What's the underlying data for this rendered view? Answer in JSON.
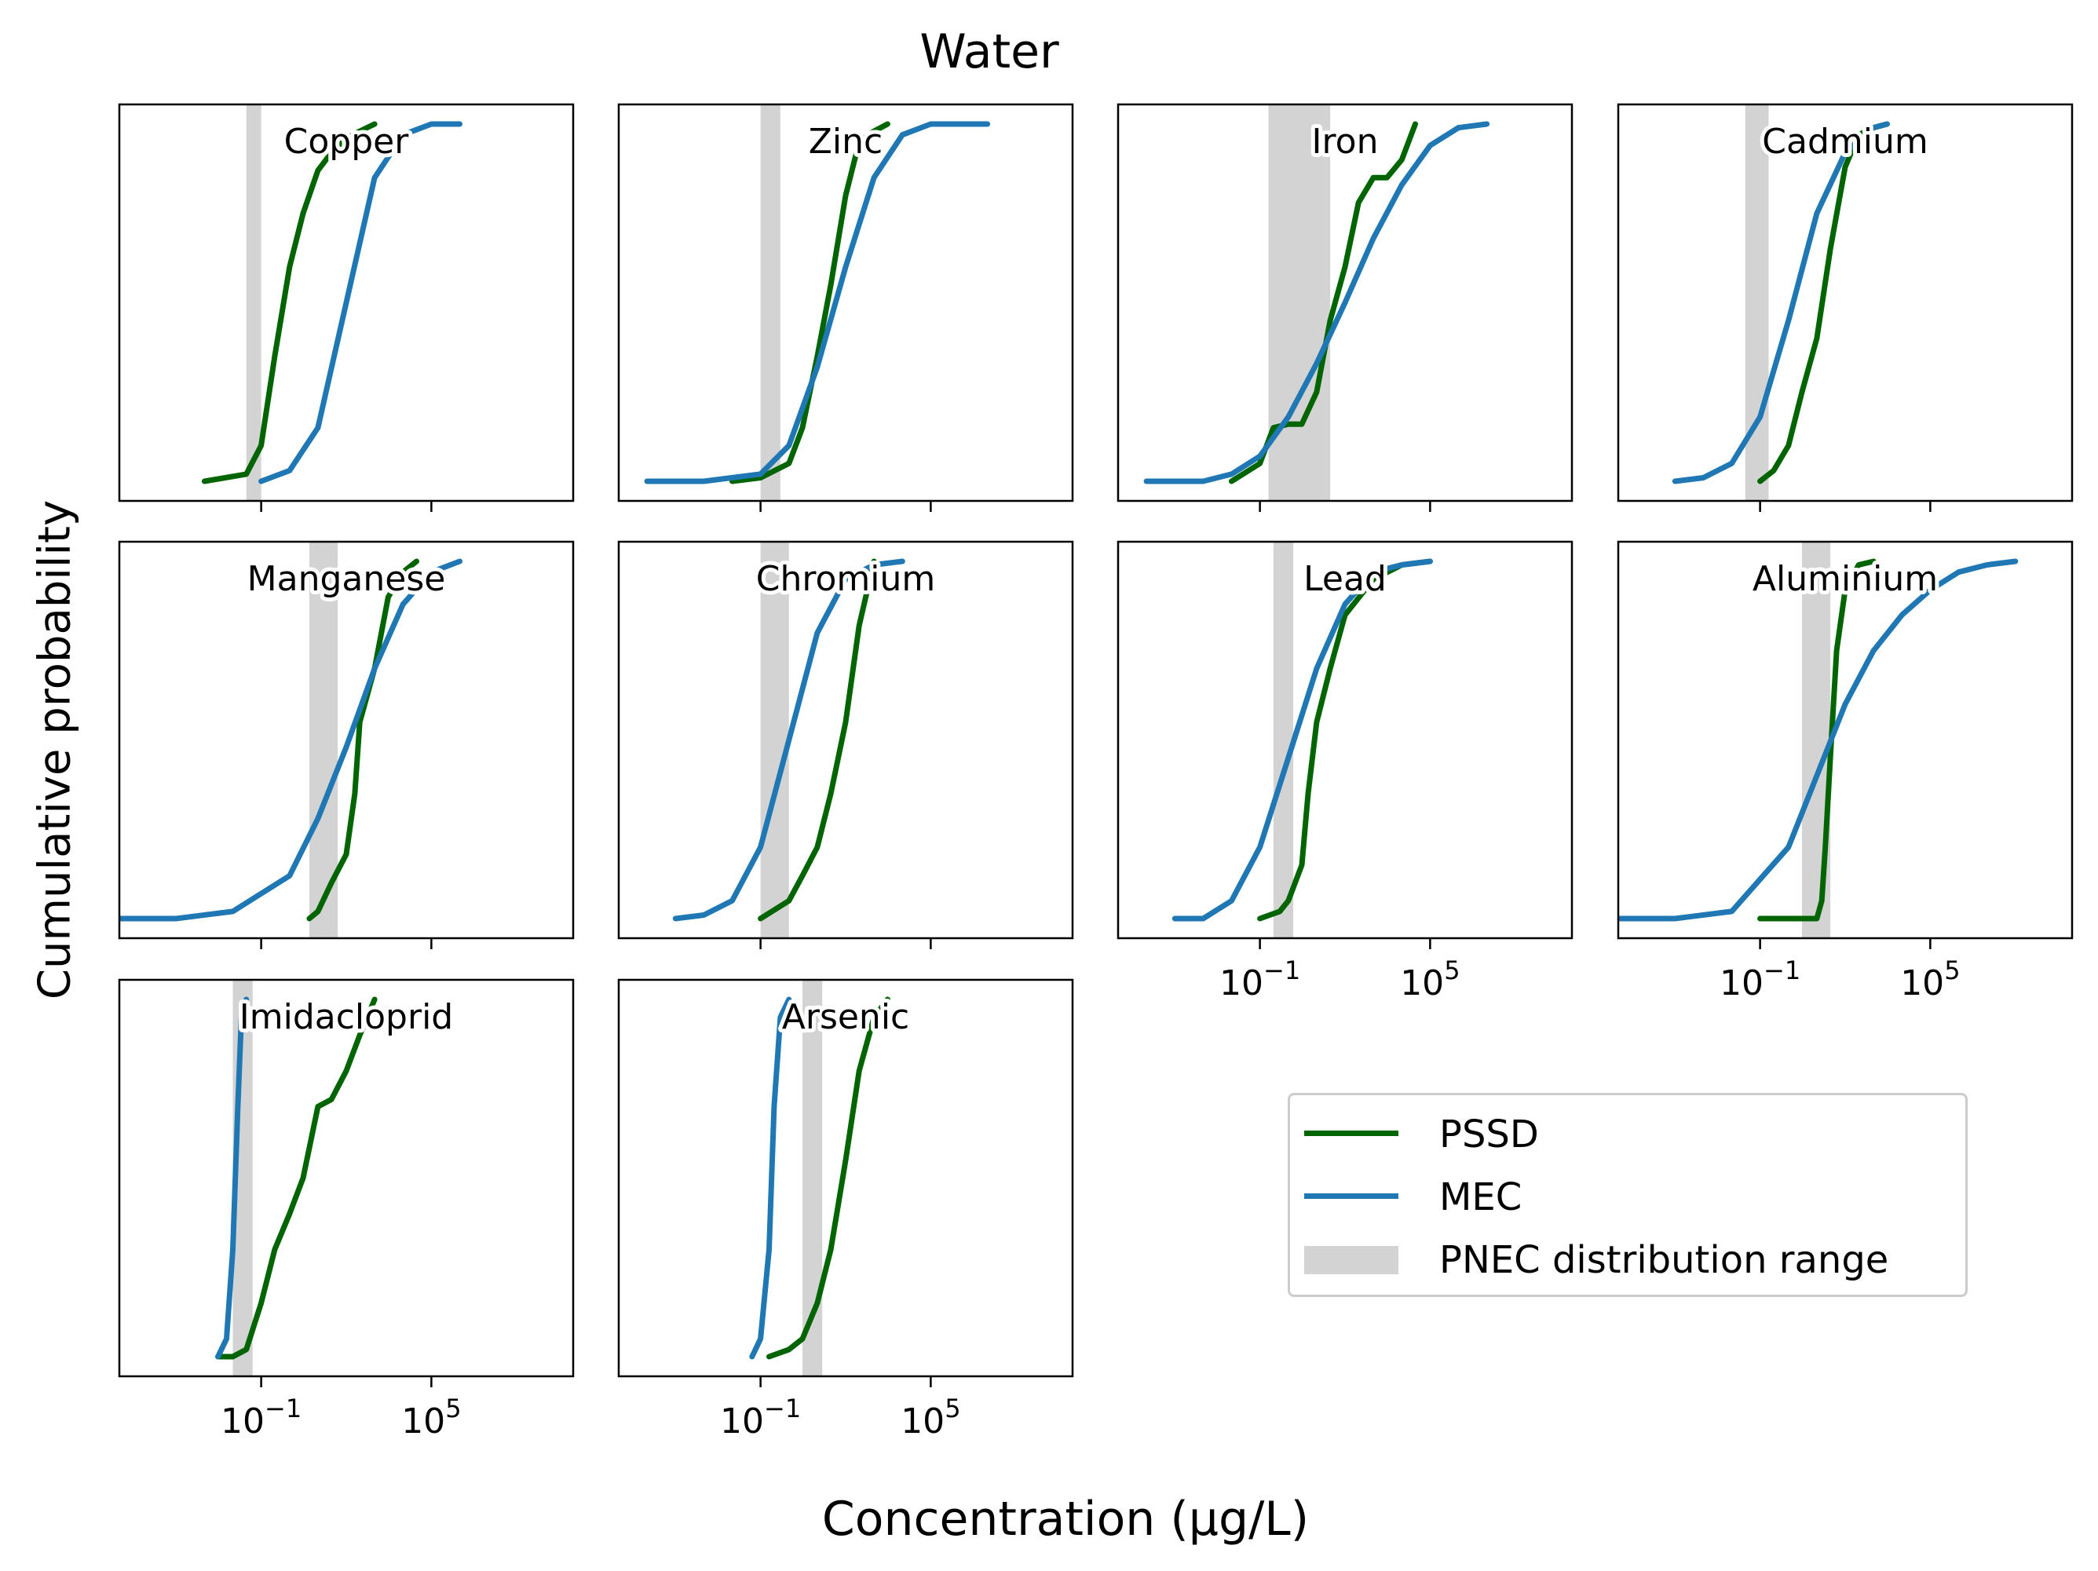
{
  "figure_title": "Water",
  "y_axis_label": "Cumulative probability",
  "x_axis_label": "Concentration (µg/L)",
  "legend": [
    {
      "label": "PSSD",
      "color": "#006400",
      "kind": "line"
    },
    {
      "label": "MEC",
      "color": "#1f77b4",
      "kind": "line"
    },
    {
      "label": "PNEC distribution range",
      "color": "#d3d3d3",
      "kind": "band"
    }
  ],
  "chart_data": {
    "type": "line",
    "xscale": "log",
    "xlim": [
      "1e-6",
      "1e10"
    ],
    "ylim": [
      0,
      1
    ],
    "x_tick_labels": [
      "10^-1",
      "10^5"
    ],
    "grid": false,
    "legend_position": "bottom-right",
    "panels": [
      {
        "name": "Copper",
        "pnec_range": [
          "0.03",
          "0.1"
        ],
        "series": [
          {
            "name": "PSSD",
            "x": [
              "0.001",
              "0.03",
              "0.1",
              "0.3",
              "1",
              "3",
              "10",
              "30",
              "100",
              "300",
              "1000"
            ],
            "y": [
              0.0,
              0.02,
              0.1,
              0.35,
              0.6,
              0.75,
              0.87,
              0.92,
              0.96,
              0.98,
              1.0
            ]
          },
          {
            "name": "MEC",
            "x": [
              "0.1",
              "1",
              "10",
              "100",
              "1000",
              "10000",
              "100000",
              "1000000"
            ],
            "y": [
              0.0,
              0.03,
              0.15,
              0.5,
              0.85,
              0.97,
              1.0,
              1.0
            ]
          }
        ]
      },
      {
        "name": "Zinc",
        "pnec_range": [
          "0.1",
          "0.5"
        ],
        "series": [
          {
            "name": "PSSD",
            "x": [
              "0.01",
              "0.1",
              "1",
              "3",
              "10",
              "30",
              "100",
              "300",
              "1000",
              "3000"
            ],
            "y": [
              0.0,
              0.01,
              0.05,
              0.15,
              0.35,
              0.55,
              0.8,
              0.95,
              0.98,
              1.0
            ]
          },
          {
            "name": "MEC",
            "x": [
              "0.00001",
              "0.001",
              "0.1",
              "1",
              "10",
              "100",
              "1000",
              "10000",
              "100000",
              "10000000"
            ],
            "y": [
              0.0,
              0.0,
              0.02,
              0.1,
              0.32,
              0.6,
              0.85,
              0.97,
              1.0,
              1.0
            ]
          }
        ]
      },
      {
        "name": "Iron",
        "pnec_range": [
          "0.2",
          "30"
        ],
        "series": [
          {
            "name": "PSSD",
            "x": [
              "0.01",
              "0.1",
              "0.3",
              "1",
              "3",
              "10",
              "30",
              "100",
              "300",
              "1000",
              "3000",
              "10000",
              "30000"
            ],
            "y": [
              0.0,
              0.05,
              0.15,
              0.16,
              0.16,
              0.25,
              0.45,
              0.6,
              0.78,
              0.85,
              0.85,
              0.9,
              1.0
            ]
          },
          {
            "name": "MEC",
            "x": [
              "0.00001",
              "0.001",
              "0.01",
              "0.1",
              "1",
              "10",
              "100",
              "1000",
              "10000",
              "100000",
              "1000000",
              "10000000"
            ],
            "y": [
              0.0,
              0.0,
              0.02,
              0.07,
              0.18,
              0.33,
              0.5,
              0.68,
              0.83,
              0.94,
              0.99,
              1.0
            ]
          }
        ]
      },
      {
        "name": "Cadmium",
        "pnec_range": [
          "0.03",
          "0.2"
        ],
        "series": [
          {
            "name": "PSSD",
            "x": [
              "0.1",
              "0.3",
              "1",
              "3",
              "10",
              "30",
              "100",
              "300",
              "1000",
              "3000"
            ],
            "y": [
              0.0,
              0.03,
              0.1,
              0.25,
              0.4,
              0.65,
              0.88,
              0.97,
              0.99,
              1.0
            ]
          },
          {
            "name": "MEC",
            "x": [
              "0.0001",
              "0.001",
              "0.01",
              "0.1",
              "1",
              "10",
              "100",
              "1000",
              "3000"
            ],
            "y": [
              0.0,
              0.01,
              0.05,
              0.18,
              0.45,
              0.75,
              0.92,
              0.99,
              1.0
            ]
          }
        ]
      },
      {
        "name": "Manganese",
        "pnec_range": [
          "5",
          "50"
        ],
        "series": [
          {
            "name": "PSSD",
            "x": [
              "5",
              "10",
              "30",
              "100",
              "200",
              "300",
              "1000",
              "3000",
              "10000",
              "30000"
            ],
            "y": [
              0.0,
              0.02,
              0.1,
              0.18,
              0.35,
              0.55,
              0.7,
              0.9,
              0.97,
              1.0
            ]
          },
          {
            "name": "MEC",
            "x": [
              "0.000001",
              "0.0001",
              "0.01",
              "1",
              "10",
              "100",
              "1000",
              "10000",
              "100000",
              "1000000"
            ],
            "y": [
              0.0,
              0.0,
              0.02,
              0.12,
              0.28,
              0.48,
              0.7,
              0.88,
              0.97,
              1.0
            ]
          }
        ]
      },
      {
        "name": "Chromium",
        "pnec_range": [
          "0.1",
          "1"
        ],
        "series": [
          {
            "name": "PSSD",
            "x": [
              "0.1",
              "1",
              "3",
              "10",
              "30",
              "100",
              "300",
              "1000"
            ],
            "y": [
              0.0,
              0.05,
              0.12,
              0.2,
              0.35,
              0.55,
              0.82,
              1.0
            ]
          },
          {
            "name": "MEC",
            "x": [
              "0.0001",
              "0.001",
              "0.01",
              "0.1",
              "1",
              "10",
              "100",
              "1000",
              "10000"
            ],
            "y": [
              0.0,
              0.01,
              0.05,
              0.2,
              0.5,
              0.8,
              0.95,
              0.99,
              1.0
            ]
          }
        ]
      },
      {
        "name": "Lead",
        "pnec_range": [
          "0.3",
          "1.5"
        ],
        "series": [
          {
            "name": "PSSD",
            "x": [
              "0.1",
              "0.5",
              "1",
              "3",
              "5",
              "10",
              "30",
              "100",
              "1000",
              "10000",
              "100000"
            ],
            "y": [
              0.0,
              0.02,
              0.05,
              0.15,
              0.35,
              0.55,
              0.7,
              0.85,
              0.95,
              0.99,
              1.0
            ]
          },
          {
            "name": "MEC",
            "x": [
              "0.0001",
              "0.001",
              "0.01",
              "0.1",
              "1",
              "10",
              "100",
              "1000",
              "10000",
              "100000"
            ],
            "y": [
              0.0,
              0.0,
              0.05,
              0.2,
              0.45,
              0.7,
              0.88,
              0.97,
              0.99,
              1.0
            ]
          }
        ]
      },
      {
        "name": "Aluminium",
        "pnec_range": [
          "3",
          "30"
        ],
        "series": [
          {
            "name": "PSSD",
            "x": [
              "0.1",
              "10",
              "15",
              "20",
              "30",
              "50",
              "100",
              "300",
              "1000"
            ],
            "y": [
              0.0,
              0.0,
              0.05,
              0.2,
              0.45,
              0.75,
              0.92,
              0.99,
              1.0
            ]
          },
          {
            "name": "MEC",
            "x": [
              "0.000001",
              "0.0001",
              "0.01",
              "1",
              "10",
              "100",
              "1000",
              "10000",
              "100000",
              "1000000",
              "10000000",
              "100000000"
            ],
            "y": [
              0.0,
              0.0,
              0.02,
              0.2,
              0.4,
              0.6,
              0.75,
              0.85,
              0.92,
              0.97,
              0.99,
              1.0
            ]
          }
        ]
      },
      {
        "name": "Imidacloprid",
        "pnec_range": [
          "0.01",
          "0.05"
        ],
        "series": [
          {
            "name": "PSSD",
            "x": [
              "0.003",
              "0.01",
              "0.03",
              "0.1",
              "0.3",
              "1",
              "3",
              "10",
              "30",
              "100",
              "300",
              "1000"
            ],
            "y": [
              0.0,
              0.0,
              0.02,
              0.15,
              0.3,
              0.4,
              0.5,
              0.7,
              0.72,
              0.8,
              0.9,
              1.0
            ]
          },
          {
            "name": "MEC",
            "x": [
              "0.003",
              "0.006",
              "0.01",
              "0.015",
              "0.02",
              "0.03"
            ],
            "y": [
              0.0,
              0.05,
              0.3,
              0.7,
              0.95,
              1.0
            ]
          }
        ]
      },
      {
        "name": "Arsenic",
        "pnec_range": [
          "3",
          "15"
        ],
        "series": [
          {
            "name": "PSSD",
            "x": [
              "0.2",
              "1",
              "3",
              "10",
              "30",
              "100",
              "300",
              "1000",
              "3000"
            ],
            "y": [
              0.0,
              0.02,
              0.05,
              0.15,
              0.3,
              0.55,
              0.8,
              0.95,
              1.0
            ]
          },
          {
            "name": "MEC",
            "x": [
              "0.05",
              "0.1",
              "0.2",
              "0.3",
              "0.5",
              "1"
            ],
            "y": [
              0.0,
              0.05,
              0.3,
              0.7,
              0.95,
              1.0
            ]
          }
        ]
      }
    ]
  }
}
